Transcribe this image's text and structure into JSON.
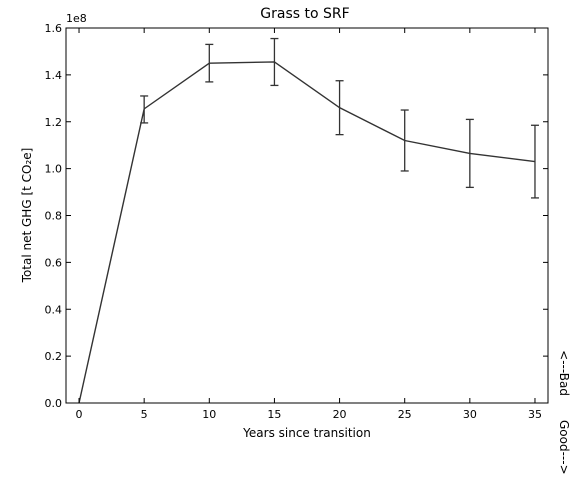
{
  "chart_data": {
    "type": "line",
    "title": "Grass to SRF",
    "xlabel": "Years since transition",
    "ylabel": "Total net GHG [t CO₂e]",
    "y_multiplier_label": "1e8",
    "xlim": [
      -1,
      36
    ],
    "ylim": [
      0.0,
      1.6
    ],
    "x_ticks": [
      "0",
      "5",
      "10",
      "15",
      "20",
      "25",
      "30",
      "35"
    ],
    "y_ticks": [
      "0.0",
      "0.2",
      "0.4",
      "0.6",
      "0.8",
      "1.0",
      "1.2",
      "1.4",
      "1.6"
    ],
    "grid": false,
    "series": [
      {
        "x": [
          0,
          5,
          10,
          15,
          20,
          25,
          30,
          35
        ],
        "y": [
          0.0,
          1.255,
          1.45,
          1.455,
          1.26,
          1.12,
          1.065,
          1.03
        ],
        "err_low": [
          0.0,
          1.195,
          1.37,
          1.355,
          1.145,
          0.99,
          0.92,
          0.875
        ],
        "err_high": [
          0.0,
          1.31,
          1.53,
          1.555,
          1.375,
          1.25,
          1.21,
          1.185
        ],
        "color": "#333333"
      }
    ],
    "side_annotations": {
      "bad": "<---Bad",
      "good": "Good--->"
    }
  }
}
